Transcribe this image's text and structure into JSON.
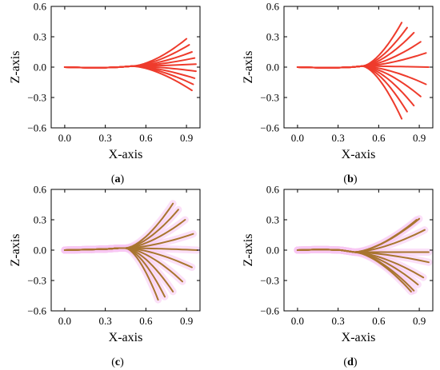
{
  "chart_data": [
    {
      "panel": "(a)",
      "panel_letter": "a",
      "type": "line",
      "xlabel": "X-axis",
      "ylabel": "Z-axis",
      "xlim": [
        -0.1,
        1.0
      ],
      "ylim": [
        -0.6,
        0.6
      ],
      "xticks": [
        "0.0",
        "0.3",
        "0.6",
        "0.9"
      ],
      "yticks": [
        "0.6",
        "0.3",
        "0.0",
        "−0.3",
        "−0.6"
      ],
      "grid": false,
      "line_color": "#ee3b2c",
      "stem": [
        [
          0.0,
          0.0
        ],
        [
          0.15,
          -0.005
        ],
        [
          0.3,
          -0.005
        ],
        [
          0.4,
          0.0
        ],
        [
          0.5,
          0.01
        ]
      ],
      "fan_origin": [
        0.5,
        0.01
      ],
      "fan_ends": [
        [
          0.9,
          0.28
        ],
        [
          0.92,
          0.22
        ],
        [
          0.94,
          0.15
        ],
        [
          0.96,
          0.09
        ],
        [
          0.97,
          0.03
        ],
        [
          0.97,
          -0.04
        ],
        [
          0.96,
          -0.11
        ],
        [
          0.95,
          -0.17
        ],
        [
          0.94,
          -0.23
        ]
      ],
      "background_shading": false
    },
    {
      "panel": "(b)",
      "panel_letter": "b",
      "type": "line",
      "xlabel": "X-axis",
      "ylabel": "Z-axis",
      "xlim": [
        -0.1,
        1.0
      ],
      "ylim": [
        -0.6,
        0.6
      ],
      "xticks": [
        "0.0",
        "0.3",
        "0.6",
        "0.9"
      ],
      "yticks": [
        "0.6",
        "0.3",
        "0.0",
        "−0.3",
        "−0.6"
      ],
      "grid": false,
      "line_color": "#ee3b2c",
      "stem": [
        [
          0.0,
          0.0
        ],
        [
          0.15,
          -0.005
        ],
        [
          0.3,
          -0.005
        ],
        [
          0.4,
          0.0
        ],
        [
          0.48,
          0.01
        ]
      ],
      "fan_origin": [
        0.48,
        0.01
      ],
      "fan_ends": [
        [
          0.77,
          0.44
        ],
        [
          0.81,
          0.39
        ],
        [
          0.86,
          0.34
        ],
        [
          0.91,
          0.25
        ],
        [
          0.95,
          0.14
        ],
        [
          0.97,
          0.0
        ],
        [
          0.95,
          -0.17
        ],
        [
          0.91,
          -0.29
        ],
        [
          0.86,
          -0.38
        ],
        [
          0.81,
          -0.44
        ],
        [
          0.77,
          -0.51
        ]
      ],
      "background_shading": false
    },
    {
      "panel": "(c)",
      "panel_letter": "c",
      "type": "line",
      "xlabel": "X-axis",
      "ylabel": "Z-axis",
      "xlim": [
        -0.1,
        1.0
      ],
      "ylim": [
        -0.6,
        0.6
      ],
      "xticks": [
        "0.0",
        "0.3",
        "0.6",
        "0.9"
      ],
      "yticks": [
        "0.6",
        "0.3",
        "0.0",
        "−0.3",
        "−0.6"
      ],
      "grid": false,
      "line_color": "#a8752f",
      "shade_color": "#f7c6f2",
      "stem": [
        [
          0.0,
          0.0
        ],
        [
          0.15,
          0.005
        ],
        [
          0.3,
          0.01
        ],
        [
          0.4,
          0.02
        ],
        [
          0.45,
          0.02
        ]
      ],
      "fan_origin": [
        0.45,
        0.02
      ],
      "fan_ends": [
        [
          0.8,
          0.46
        ],
        [
          0.84,
          0.4
        ],
        [
          0.89,
          0.3
        ],
        [
          0.95,
          0.16
        ],
        [
          0.98,
          0.0
        ],
        [
          0.94,
          -0.17
        ],
        [
          0.87,
          -0.31
        ],
        [
          0.8,
          -0.41
        ],
        [
          0.74,
          -0.46
        ],
        [
          0.69,
          -0.49
        ]
      ],
      "background_shading": true
    },
    {
      "panel": "(d)",
      "panel_letter": "d",
      "type": "line",
      "xlabel": "X-axis",
      "ylabel": "Z-axis",
      "xlim": [
        -0.1,
        1.0
      ],
      "ylim": [
        -0.6,
        0.6
      ],
      "xticks": [
        "0.0",
        "0.3",
        "0.6",
        "0.9"
      ],
      "yticks": [
        "0.6",
        "0.3",
        "0.0",
        "−0.3",
        "−0.6"
      ],
      "grid": false,
      "line_color": "#a8752f",
      "shade_color": "#f7c6f2",
      "stem": [
        [
          0.0,
          0.0
        ],
        [
          0.12,
          0.005
        ],
        [
          0.22,
          0.005
        ],
        [
          0.32,
          0.0
        ],
        [
          0.42,
          -0.02
        ]
      ],
      "fan_origin": [
        0.42,
        -0.02
      ],
      "fan_ends": [
        [
          0.88,
          0.3
        ],
        [
          0.9,
          0.31
        ],
        [
          0.94,
          0.2
        ],
        [
          0.97,
          -0.02
        ],
        [
          0.97,
          -0.12
        ],
        [
          0.93,
          -0.27
        ],
        [
          0.89,
          -0.34
        ],
        [
          0.86,
          -0.4
        ],
        [
          0.84,
          -0.41
        ]
      ],
      "background_shading": true
    }
  ]
}
